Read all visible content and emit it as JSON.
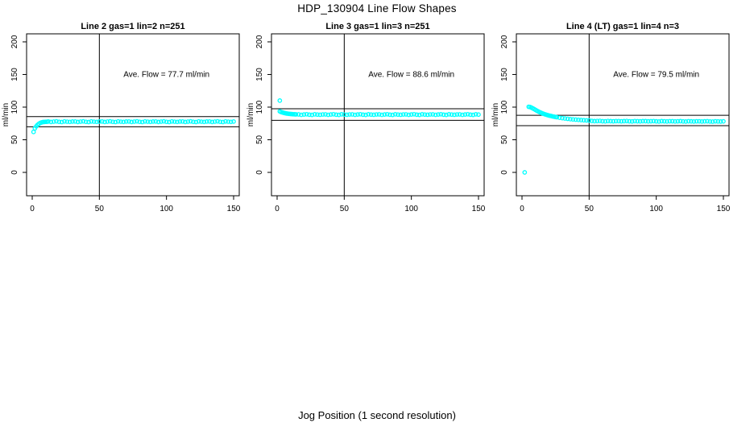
{
  "page": {
    "title": "HDP_130904  Line Flow Shapes",
    "xlabel": "Jog Position (1 second resolution)",
    "background": "#ffffff",
    "marker_color": "#00FFFF",
    "axis_color": "#000000"
  },
  "chart_data": [
    {
      "type": "scatter",
      "title": "Line 2 gas=1 lin=2 n=251",
      "annotation": {
        "text": "Ave. Flow =  77.7  ml/min",
        "x": 100,
        "y": 150
      },
      "ave_flow_ml_min": 77.7,
      "ylabel": "ml/min",
      "xticks": [
        0,
        50,
        100,
        150
      ],
      "yticks": [
        0,
        50,
        100,
        150,
        200
      ],
      "x_range": [
        -4.2,
        154.2
      ],
      "y_range": [
        -35.8,
        212.3
      ],
      "vline_x": 50,
      "hlines": [
        85.5,
        69.9
      ],
      "grid": false,
      "legend": "none",
      "marker_color": "#00FFFF",
      "points": [
        [
          1,
          62
        ],
        [
          2,
          67.5
        ],
        [
          3,
          70.5
        ],
        [
          4,
          72.8
        ],
        [
          5,
          74.5
        ],
        [
          6,
          75.8
        ],
        [
          7,
          76.6
        ],
        [
          8,
          77.1
        ],
        [
          9,
          77.3
        ],
        [
          10,
          77.5
        ],
        [
          11,
          77.6
        ],
        [
          12,
          78.0
        ],
        [
          14,
          77.3
        ],
        [
          16,
          77.8
        ],
        [
          18,
          78.2
        ],
        [
          20,
          77.5
        ],
        [
          22,
          77.2
        ],
        [
          24,
          78.1
        ],
        [
          26,
          77.7
        ],
        [
          28,
          77.4
        ],
        [
          30,
          77.9
        ],
        [
          32,
          78.0
        ],
        [
          34,
          77.3
        ],
        [
          36,
          77.8
        ],
        [
          38,
          78.2
        ],
        [
          40,
          77.5
        ],
        [
          42,
          77.2
        ],
        [
          44,
          78.1
        ],
        [
          46,
          77.7
        ],
        [
          48,
          77.4
        ],
        [
          50,
          77.9
        ],
        [
          52,
          78.0
        ],
        [
          54,
          77.3
        ],
        [
          56,
          77.8
        ],
        [
          58,
          78.2
        ],
        [
          60,
          77.5
        ],
        [
          62,
          77.2
        ],
        [
          64,
          78.1
        ],
        [
          66,
          77.7
        ],
        [
          68,
          77.4
        ],
        [
          70,
          77.9
        ],
        [
          72,
          78.0
        ],
        [
          74,
          77.3
        ],
        [
          76,
          77.8
        ],
        [
          78,
          78.2
        ],
        [
          80,
          77.5
        ],
        [
          82,
          77.2
        ],
        [
          84,
          78.1
        ],
        [
          86,
          77.7
        ],
        [
          88,
          77.4
        ],
        [
          90,
          77.9
        ],
        [
          92,
          78.0
        ],
        [
          94,
          77.3
        ],
        [
          96,
          77.8
        ],
        [
          98,
          78.2
        ],
        [
          100,
          77.5
        ],
        [
          102,
          77.2
        ],
        [
          104,
          78.1
        ],
        [
          106,
          77.7
        ],
        [
          108,
          77.4
        ],
        [
          110,
          77.9
        ],
        [
          112,
          78.0
        ],
        [
          114,
          77.3
        ],
        [
          116,
          77.8
        ],
        [
          118,
          78.2
        ],
        [
          120,
          77.5
        ],
        [
          122,
          77.2
        ],
        [
          124,
          78.1
        ],
        [
          126,
          77.7
        ],
        [
          128,
          77.4
        ],
        [
          130,
          77.9
        ],
        [
          132,
          78.0
        ],
        [
          134,
          77.3
        ],
        [
          136,
          77.8
        ],
        [
          138,
          78.2
        ],
        [
          140,
          77.5
        ],
        [
          142,
          77.2
        ],
        [
          144,
          78.1
        ],
        [
          146,
          77.7
        ],
        [
          148,
          77.4
        ],
        [
          150,
          77.9
        ]
      ]
    },
    {
      "type": "scatter",
      "title": "Line 3 gas=1 lin=3 n=251",
      "annotation": {
        "text": "Ave. Flow =  88.6  ml/min",
        "x": 100,
        "y": 150
      },
      "ave_flow_ml_min": 88.6,
      "ylabel": "ml/min",
      "xticks": [
        0,
        50,
        100,
        150
      ],
      "yticks": [
        0,
        50,
        100,
        150,
        200
      ],
      "x_range": [
        -4.2,
        154.2
      ],
      "y_range": [
        -35.8,
        212.3
      ],
      "vline_x": 50,
      "hlines": [
        97.5,
        79.7
      ],
      "grid": false,
      "legend": "none",
      "marker_color": "#00FFFF",
      "points": [
        [
          2,
          110
        ],
        [
          2,
          93.5
        ],
        [
          3,
          92.5
        ],
        [
          4,
          91.8
        ],
        [
          5,
          91.2
        ],
        [
          6,
          90.7
        ],
        [
          7,
          90.3
        ],
        [
          8,
          90.0
        ],
        [
          9,
          89.7
        ],
        [
          10,
          89.5
        ],
        [
          11,
          89.3
        ],
        [
          12,
          89.1
        ],
        [
          13,
          89.0
        ],
        [
          14,
          88.9
        ],
        [
          16,
          88.9
        ],
        [
          18,
          88.2
        ],
        [
          20,
          88.7
        ],
        [
          22,
          89.1
        ],
        [
          24,
          88.4
        ],
        [
          26,
          88.1
        ],
        [
          28,
          89.0
        ],
        [
          30,
          88.6
        ],
        [
          32,
          88.3
        ],
        [
          34,
          88.8
        ],
        [
          36,
          88.9
        ],
        [
          38,
          88.2
        ],
        [
          40,
          88.7
        ],
        [
          42,
          89.1
        ],
        [
          44,
          88.4
        ],
        [
          46,
          88.1
        ],
        [
          48,
          89.0
        ],
        [
          50,
          88.6
        ],
        [
          52,
          88.3
        ],
        [
          54,
          88.8
        ],
        [
          56,
          88.9
        ],
        [
          58,
          88.2
        ],
        [
          60,
          88.7
        ],
        [
          62,
          89.1
        ],
        [
          64,
          88.4
        ],
        [
          66,
          88.1
        ],
        [
          68,
          89.0
        ],
        [
          70,
          88.6
        ],
        [
          72,
          88.3
        ],
        [
          74,
          88.8
        ],
        [
          76,
          88.9
        ],
        [
          78,
          88.2
        ],
        [
          80,
          88.7
        ],
        [
          82,
          89.1
        ],
        [
          84,
          88.4
        ],
        [
          86,
          88.1
        ],
        [
          88,
          89.0
        ],
        [
          90,
          88.6
        ],
        [
          92,
          88.3
        ],
        [
          94,
          88.8
        ],
        [
          96,
          88.9
        ],
        [
          98,
          88.2
        ],
        [
          100,
          88.7
        ],
        [
          102,
          89.1
        ],
        [
          104,
          88.4
        ],
        [
          106,
          88.1
        ],
        [
          108,
          89.0
        ],
        [
          110,
          88.6
        ],
        [
          112,
          88.3
        ],
        [
          114,
          88.8
        ],
        [
          116,
          88.9
        ],
        [
          118,
          88.2
        ],
        [
          120,
          88.7
        ],
        [
          122,
          89.1
        ],
        [
          124,
          88.4
        ],
        [
          126,
          88.1
        ],
        [
          128,
          89.0
        ],
        [
          130,
          88.6
        ],
        [
          132,
          88.3
        ],
        [
          134,
          88.8
        ],
        [
          136,
          88.9
        ],
        [
          138,
          88.2
        ],
        [
          140,
          88.7
        ],
        [
          142,
          89.1
        ],
        [
          144,
          88.4
        ],
        [
          146,
          88.1
        ],
        [
          148,
          89.0
        ],
        [
          150,
          88.6
        ]
      ]
    },
    {
      "type": "scatter",
      "title": "Line 4 (LT) gas=1 lin=4 n=3",
      "annotation": {
        "text": "Ave. Flow =  79.5  ml/min",
        "x": 100,
        "y": 150
      },
      "ave_flow_ml_min": 79.5,
      "ylabel": "ml/min",
      "xticks": [
        0,
        50,
        100,
        150
      ],
      "yticks": [
        0,
        50,
        100,
        150,
        200
      ],
      "x_range": [
        -4.2,
        154.2
      ],
      "y_range": [
        -35.8,
        212.3
      ],
      "vline_x": 50,
      "hlines": [
        87.5,
        71.6
      ],
      "grid": false,
      "legend": "none",
      "marker_color": "#00FFFF",
      "points": [
        [
          2,
          0
        ],
        [
          5,
          100.5
        ],
        [
          6,
          100.2
        ],
        [
          7,
          99.3
        ],
        [
          8,
          98.2
        ],
        [
          9,
          97.0
        ],
        [
          10,
          95.8
        ],
        [
          11,
          94.6
        ],
        [
          12,
          93.5
        ],
        [
          13,
          92.5
        ],
        [
          14,
          91.5
        ],
        [
          15,
          90.6
        ],
        [
          16,
          89.8
        ],
        [
          17,
          89.1
        ],
        [
          18,
          88.4
        ],
        [
          19,
          87.8
        ],
        [
          20,
          87.2
        ],
        [
          21,
          86.7
        ],
        [
          22,
          86.2
        ],
        [
          23,
          85.7
        ],
        [
          24,
          85.3
        ],
        [
          25,
          84.9
        ],
        [
          26,
          84.5
        ],
        [
          28,
          83.8
        ],
        [
          30,
          83.2
        ],
        [
          32,
          82.6
        ],
        [
          34,
          82.1
        ],
        [
          36,
          81.6
        ],
        [
          38,
          81.2
        ],
        [
          40,
          80.8
        ],
        [
          42,
          80.5
        ],
        [
          44,
          80.2
        ],
        [
          46,
          79.9
        ],
        [
          48,
          79.7
        ],
        [
          50,
          79.5
        ],
        [
          52,
          78.8
        ],
        [
          54,
          78.5
        ],
        [
          56,
          78.7
        ],
        [
          58,
          78.9
        ],
        [
          60,
          78.4
        ],
        [
          62,
          78.2
        ],
        [
          64,
          78.7
        ],
        [
          66,
          78.5
        ],
        [
          68,
          78.3
        ],
        [
          70,
          78.6
        ],
        [
          72,
          78.6
        ],
        [
          74,
          78.3
        ],
        [
          76,
          78.5
        ],
        [
          78,
          78.7
        ],
        [
          80,
          78.3
        ],
        [
          82,
          78.1
        ],
        [
          84,
          78.6
        ],
        [
          86,
          78.4
        ],
        [
          88,
          78.2
        ],
        [
          90,
          78.5
        ],
        [
          92,
          78.5
        ],
        [
          94,
          78.2
        ],
        [
          96,
          78.4
        ],
        [
          98,
          78.6
        ],
        [
          100,
          78.2
        ],
        [
          102,
          78.0
        ],
        [
          104,
          78.5
        ],
        [
          106,
          78.3
        ],
        [
          108,
          78.1
        ],
        [
          110,
          78.4
        ],
        [
          112,
          78.4
        ],
        [
          114,
          78.1
        ],
        [
          116,
          78.3
        ],
        [
          118,
          78.5
        ],
        [
          120,
          78.1
        ],
        [
          122,
          77.9
        ],
        [
          124,
          78.4
        ],
        [
          126,
          78.2
        ],
        [
          128,
          78.0
        ],
        [
          130,
          78.3
        ],
        [
          132,
          78.3
        ],
        [
          134,
          78.0
        ],
        [
          136,
          78.2
        ],
        [
          138,
          78.4
        ],
        [
          140,
          78.0
        ],
        [
          142,
          77.8
        ],
        [
          144,
          78.3
        ],
        [
          146,
          78.1
        ],
        [
          148,
          77.9
        ],
        [
          150,
          78.2
        ]
      ]
    }
  ]
}
